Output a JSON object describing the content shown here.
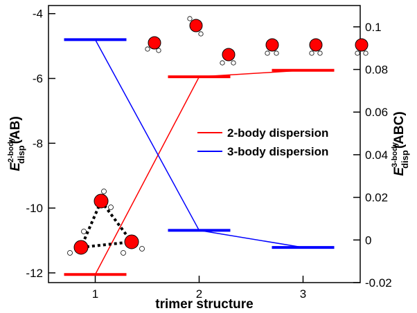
{
  "chart_data": {
    "type": "line",
    "xlabel": "trimer structure",
    "categories": [
      "1",
      "2",
      "3"
    ],
    "x": [
      1,
      2,
      3
    ],
    "xlim": [
      0.55,
      3.55
    ],
    "left_axis": {
      "label_main": "E",
      "label_sup": "2-body",
      "label_sub": "disp",
      "label_tail": "(AB)",
      "ylim": [
        -12.3,
        -3.75
      ],
      "ticks": [
        -4,
        -6,
        -8,
        -10,
        -12
      ],
      "tick_labels": [
        "-4",
        "-6",
        "-8",
        "-10",
        "-12"
      ]
    },
    "right_axis": {
      "label_main": "E",
      "label_sup": "3-body",
      "label_sub": "disp",
      "label_tail": "(ABC)",
      "ylim": [
        -0.02,
        0.11
      ],
      "ticks": [
        0.1,
        0.08,
        0.06,
        0.04,
        0.02,
        0,
        -0.02
      ],
      "tick_labels": [
        "0.1",
        "0.08",
        "0.06",
        "0.04",
        "0.02",
        "0",
        "-0.02"
      ]
    },
    "series": [
      {
        "name": "2-body dispersion",
        "axis": "left",
        "color": "#ff0000",
        "values": [
          -12.05,
          -5.95,
          -5.75
        ]
      },
      {
        "name": "3-body dispersion",
        "axis": "right",
        "color": "#0000ff",
        "values": [
          0.094,
          0.0045,
          -0.0035
        ]
      }
    ],
    "legend": {
      "position": "center-right",
      "entries": [
        "2-body dispersion",
        "3-body dispersion"
      ]
    }
  },
  "colors": {
    "oxygen": "#ff0000",
    "hydrogen": "#ffffff",
    "hbond": "#000000"
  },
  "icons": {
    "trimer": "water-trimer-molecule-icon",
    "molecule": "water-molecule-icon"
  }
}
